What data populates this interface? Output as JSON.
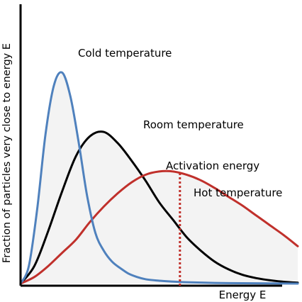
{
  "chart_data": {
    "type": "line",
    "title": "",
    "xlabel": "Energy E",
    "ylabel": "Fraction of particles very close to energy E",
    "xlim": [
      0,
      100
    ],
    "ylim": [
      0,
      100
    ],
    "grid": false,
    "legend": "none",
    "series": [
      {
        "name": "Cold temperature",
        "color": "#4f81bd",
        "x": [
          0,
          3,
          6,
          9,
          12,
          15,
          18,
          21,
          24,
          27,
          30,
          33,
          36,
          39,
          42,
          45,
          50,
          55,
          60,
          70,
          80,
          90,
          100
        ],
        "y": [
          0,
          8,
          34,
          68,
          90,
          96,
          85,
          64,
          40,
          23,
          15,
          10,
          7,
          4.5,
          3,
          2,
          1.3,
          0.9,
          0.6,
          0.3,
          0.15,
          0.08,
          0
        ]
      },
      {
        "name": "Room temperature",
        "color": "#000000",
        "x": [
          0,
          5,
          10,
          15,
          20,
          25,
          30,
          35,
          40,
          45,
          50,
          55,
          60,
          65,
          70,
          75,
          80,
          85,
          90,
          95,
          100
        ],
        "y": [
          0,
          8,
          24,
          42,
          58,
          67,
          69,
          64,
          56,
          47,
          37,
          29,
          21,
          15,
          10,
          6.5,
          4,
          2.5,
          1.5,
          0.8,
          0.4
        ]
      },
      {
        "name": "Hot temperature",
        "color": "#c0302b",
        "x": [
          0,
          5,
          10,
          15,
          20,
          25,
          30,
          35,
          40,
          45,
          50,
          55,
          60,
          65,
          70,
          75,
          80,
          85,
          90,
          95,
          100
        ],
        "y": [
          0,
          3,
          8,
          14,
          20,
          28,
          35,
          41,
          46,
          49.5,
          51,
          51,
          49.5,
          47,
          43.5,
          39.5,
          35.5,
          31,
          26.5,
          22,
          17
        ]
      }
    ],
    "annotations": [
      {
        "text": "Cold temperature",
        "series": "Cold temperature"
      },
      {
        "text": "Room temperature",
        "series": "Room temperature"
      },
      {
        "text": "Activation energy",
        "x": 57.5
      },
      {
        "text": "Hot temperature",
        "series": "Hot temperature"
      }
    ],
    "activation_energy_x": 57.5
  }
}
